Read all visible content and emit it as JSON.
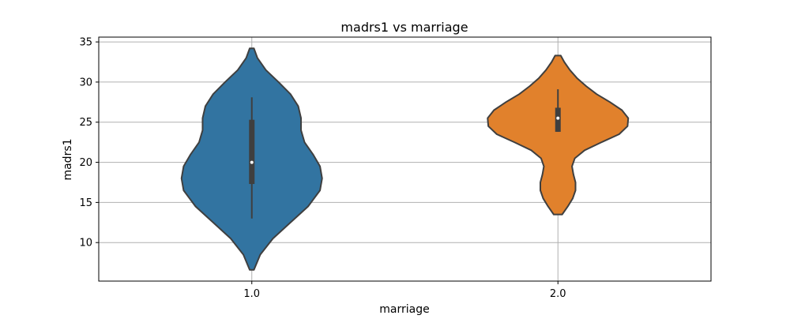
{
  "chart_data": {
    "type": "violin",
    "title": "madrs1 vs marriage",
    "xlabel": "marriage",
    "ylabel": "madrs1",
    "categories": [
      "1.0",
      "2.0"
    ],
    "ylim": [
      5.2,
      35.6
    ],
    "yticks": [
      10,
      15,
      20,
      25,
      30,
      35
    ],
    "grid": true,
    "colors": [
      "#3274a1",
      "#e1812c"
    ],
    "outline_color": "#3f3f3f",
    "grid_color": "#b0b0b0",
    "violins": [
      {
        "category": "1.0",
        "min": 6.6,
        "max": 34.2,
        "q1": 17.3,
        "median": 20.0,
        "q3": 25.3,
        "whisker_low": 13.0,
        "whisker_high": 28.1,
        "density": [
          [
            6.6,
            0.03
          ],
          [
            8.5,
            0.12
          ],
          [
            10.5,
            0.3
          ],
          [
            12.5,
            0.55
          ],
          [
            14.5,
            0.8
          ],
          [
            16.5,
            0.97
          ],
          [
            18.0,
            1.0
          ],
          [
            19.5,
            0.97
          ],
          [
            21.0,
            0.87
          ],
          [
            22.5,
            0.75
          ],
          [
            24.0,
            0.7
          ],
          [
            25.5,
            0.7
          ],
          [
            27.0,
            0.66
          ],
          [
            28.5,
            0.55
          ],
          [
            30.0,
            0.38
          ],
          [
            31.5,
            0.2
          ],
          [
            33.0,
            0.08
          ],
          [
            34.2,
            0.03
          ]
        ]
      },
      {
        "category": "2.0",
        "min": 13.5,
        "max": 33.3,
        "q1": 23.8,
        "median": 25.5,
        "q3": 26.8,
        "whisker_low": 23.8,
        "whisker_high": 29.1,
        "density": [
          [
            13.5,
            0.06
          ],
          [
            14.5,
            0.14
          ],
          [
            15.5,
            0.21
          ],
          [
            16.5,
            0.25
          ],
          [
            17.5,
            0.25
          ],
          [
            18.5,
            0.22
          ],
          [
            19.5,
            0.2
          ],
          [
            20.5,
            0.24
          ],
          [
            21.5,
            0.38
          ],
          [
            22.5,
            0.62
          ],
          [
            23.5,
            0.87
          ],
          [
            24.5,
            0.99
          ],
          [
            25.5,
            1.0
          ],
          [
            26.5,
            0.91
          ],
          [
            27.5,
            0.74
          ],
          [
            28.5,
            0.55
          ],
          [
            29.5,
            0.4
          ],
          [
            30.5,
            0.27
          ],
          [
            31.5,
            0.17
          ],
          [
            32.5,
            0.09
          ],
          [
            33.3,
            0.04
          ]
        ]
      }
    ]
  }
}
